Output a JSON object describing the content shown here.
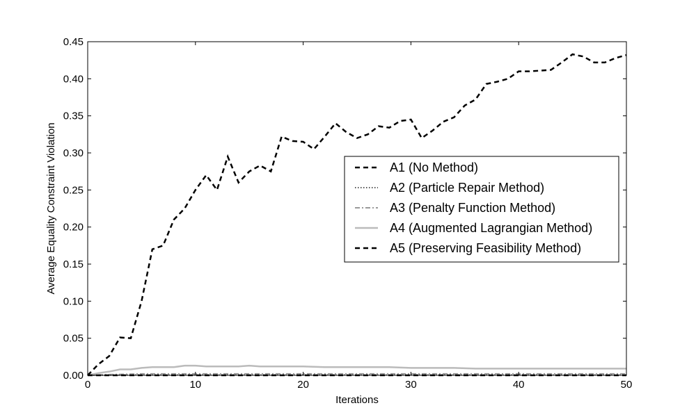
{
  "chart_data": {
    "type": "line",
    "title": "",
    "xlabel": "Iterations",
    "ylabel": "Average Equality Constraint Violation",
    "xlim": [
      0,
      50
    ],
    "ylim": [
      0,
      0.45
    ],
    "xticks": [
      "0",
      "10",
      "20",
      "30",
      "40",
      "50"
    ],
    "yticks": [
      "0.00",
      "0.05",
      "0.10",
      "0.15",
      "0.20",
      "0.25",
      "0.30",
      "0.35",
      "0.40",
      "0.45"
    ],
    "grid": false,
    "legend_position": "center-right",
    "series": [
      {
        "name": "A1 (No Method)",
        "color": "#000000",
        "style": "dashed",
        "x": [
          0,
          1,
          2,
          3,
          4,
          5,
          6,
          7,
          8,
          9,
          10,
          11,
          12,
          13,
          14,
          15,
          16,
          17,
          18,
          19,
          20,
          21,
          22,
          23,
          24,
          25,
          26,
          27,
          28,
          29,
          30,
          31,
          32,
          33,
          34,
          35,
          36,
          37,
          38,
          39,
          40,
          41,
          42,
          43,
          44,
          45,
          46,
          47,
          48,
          49,
          50
        ],
        "values": [
          0.0,
          0.015,
          0.026,
          0.051,
          0.05,
          0.1,
          0.17,
          0.175,
          0.21,
          0.225,
          0.25,
          0.27,
          0.25,
          0.295,
          0.26,
          0.275,
          0.283,
          0.275,
          0.322,
          0.316,
          0.315,
          0.305,
          0.322,
          0.34,
          0.328,
          0.32,
          0.325,
          0.336,
          0.334,
          0.343,
          0.345,
          0.32,
          0.33,
          0.342,
          0.348,
          0.364,
          0.372,
          0.393,
          0.396,
          0.4,
          0.41,
          0.41,
          0.411,
          0.412,
          0.422,
          0.433,
          0.43,
          0.422,
          0.422,
          0.428,
          0.432
        ]
      },
      {
        "name": "A2 (Particle Repair Method)",
        "color": "#555555",
        "style": "dotted",
        "x": [
          0,
          5,
          10,
          15,
          20,
          25,
          30,
          35,
          40,
          45,
          50
        ],
        "values": [
          0.0,
          0.0005,
          0.0005,
          0.0005,
          0.0005,
          0.0005,
          0.0005,
          0.0005,
          0.0005,
          0.0005,
          0.0005
        ]
      },
      {
        "name": "A3 (Penalty Function Method)",
        "color": "#999999",
        "style": "dashdot",
        "x": [
          0,
          2,
          5,
          10,
          15,
          20,
          25,
          30,
          35,
          40,
          45,
          50
        ],
        "values": [
          0.0,
          0.001,
          0.002,
          0.002,
          0.002,
          0.002,
          0.002,
          0.002,
          0.002,
          0.002,
          0.002,
          0.002
        ]
      },
      {
        "name": "A4 (Augmented Lagrangian Method)",
        "color": "#bbbbbb",
        "style": "solid",
        "x": [
          0,
          1,
          2,
          3,
          4,
          5,
          6,
          7,
          8,
          9,
          10,
          11,
          12,
          13,
          14,
          15,
          16,
          17,
          18,
          19,
          20,
          22,
          24,
          26,
          28,
          30,
          32,
          34,
          36,
          38,
          40,
          42,
          44,
          46,
          48,
          50
        ],
        "values": [
          0.0,
          0.003,
          0.005,
          0.008,
          0.008,
          0.01,
          0.011,
          0.011,
          0.011,
          0.013,
          0.013,
          0.012,
          0.012,
          0.012,
          0.012,
          0.013,
          0.012,
          0.012,
          0.012,
          0.012,
          0.012,
          0.011,
          0.011,
          0.011,
          0.011,
          0.01,
          0.01,
          0.01,
          0.009,
          0.009,
          0.009,
          0.009,
          0.009,
          0.009,
          0.009,
          0.009
        ]
      },
      {
        "name": "A5 (Preserving Feasibility Method)",
        "color": "#000000",
        "style": "dashed",
        "x": [
          0,
          5,
          10,
          15,
          20,
          25,
          30,
          35,
          40,
          45,
          50
        ],
        "values": [
          0,
          0,
          0,
          0,
          0,
          0,
          0,
          0,
          0,
          0,
          0
        ]
      }
    ]
  }
}
